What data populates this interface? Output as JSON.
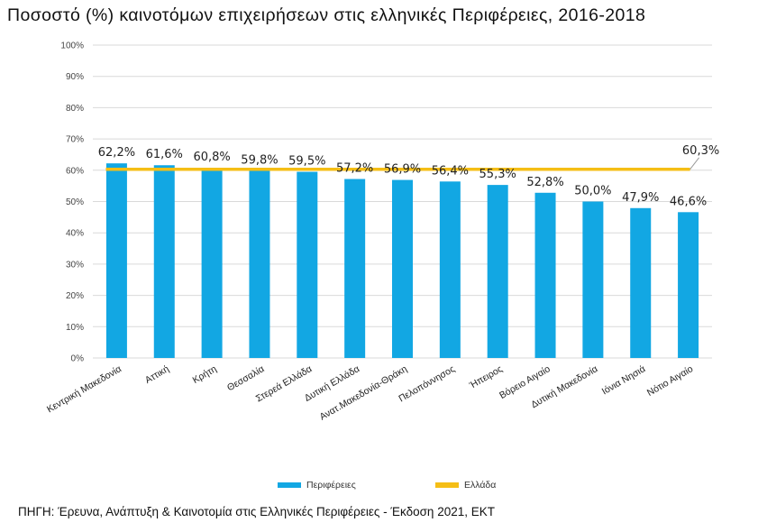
{
  "title": "Ποσοστό (%) καινοτόμων επιχειρήσεων στις ελληνικές Περιφέρειες, 2016-2018",
  "source": "ΠΗΓΗ: Έρευνα, Ανάπτυξη & Καινοτομία στις Ελληνικές Περιφέρειες - Έκδοση 2021, ΕΚΤ",
  "colors": {
    "bar": "#12A7E3",
    "line": "#F5BE16",
    "grid": "#D9D9D9"
  },
  "chart_data": {
    "type": "bar",
    "categories": [
      "Κεντρική Μακεδονία",
      "Αττική",
      "Κρήτη",
      "Θεσσαλία",
      "Στερεά Ελλάδα",
      "Δυτική Ελλάδα",
      "Ανατ.Μακεδονία-Θράκη",
      "Πελοπόννησος",
      "Ήπειρος",
      "Βόρειο Αιγαίο",
      "Δυτική Μακεδονία",
      "Ιόνια Νησιά",
      "Νότιο Αιγαίο"
    ],
    "series": [
      {
        "name": "Περιφέρειες",
        "type": "bar",
        "values": [
          62.2,
          61.6,
          60.8,
          59.8,
          59.5,
          57.2,
          56.9,
          56.4,
          55.3,
          52.8,
          50.0,
          47.9,
          46.6
        ],
        "labels": [
          "62,2%",
          "61,6%",
          "60,8%",
          "59,8%",
          "59,5%",
          "57,2%",
          "56,9%",
          "56,4%",
          "55,3%",
          "52,8%",
          "50,0%",
          "47,9%",
          "46,6%"
        ]
      },
      {
        "name": "Ελλάδα",
        "type": "line",
        "value": 60.3,
        "label": "60,3%"
      }
    ],
    "yticks": [
      "0%",
      "10%",
      "20%",
      "30%",
      "40%",
      "50%",
      "60%",
      "70%",
      "80%",
      "90%",
      "100%"
    ],
    "ylim": [
      0,
      100
    ],
    "grid": true,
    "legend": "bottom"
  }
}
